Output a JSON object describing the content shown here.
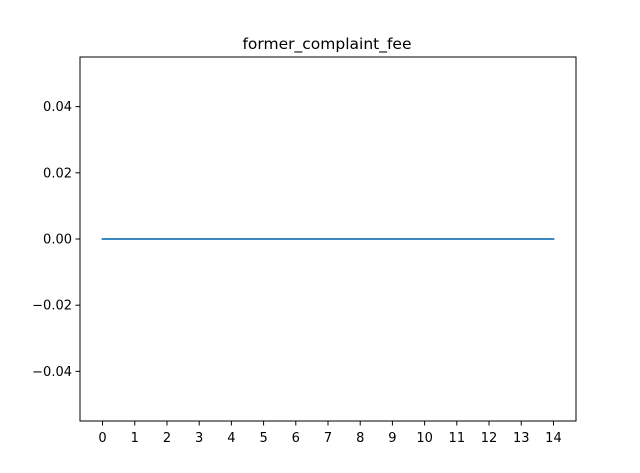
{
  "chart_data": {
    "type": "line",
    "title": "former_complaint_fee",
    "xlabel": "",
    "ylabel": "",
    "x": [
      0,
      1,
      2,
      3,
      4,
      5,
      6,
      7,
      8,
      9,
      10,
      11,
      12,
      13,
      14
    ],
    "series": [
      {
        "values": [
          0,
          0,
          0,
          0,
          0,
          0,
          0,
          0,
          0,
          0,
          0,
          0,
          0,
          0,
          0
        ],
        "color": "#1f77b4"
      }
    ],
    "xlim": [
      -0.7,
      14.7
    ],
    "ylim": [
      -0.055,
      0.055
    ],
    "x_ticks": [
      0,
      1,
      2,
      3,
      4,
      5,
      6,
      7,
      8,
      9,
      10,
      11,
      12,
      13,
      14
    ],
    "x_tick_labels": [
      "0",
      "1",
      "2",
      "3",
      "4",
      "5",
      "6",
      "7",
      "8",
      "9",
      "10",
      "11",
      "12",
      "13",
      "14"
    ],
    "y_ticks": [
      -0.04,
      -0.02,
      0.0,
      0.02,
      0.04
    ],
    "y_tick_labels": [
      "−0.04",
      "−0.02",
      "0.00",
      "0.02",
      "0.04"
    ],
    "grid": false,
    "legend": "none"
  }
}
